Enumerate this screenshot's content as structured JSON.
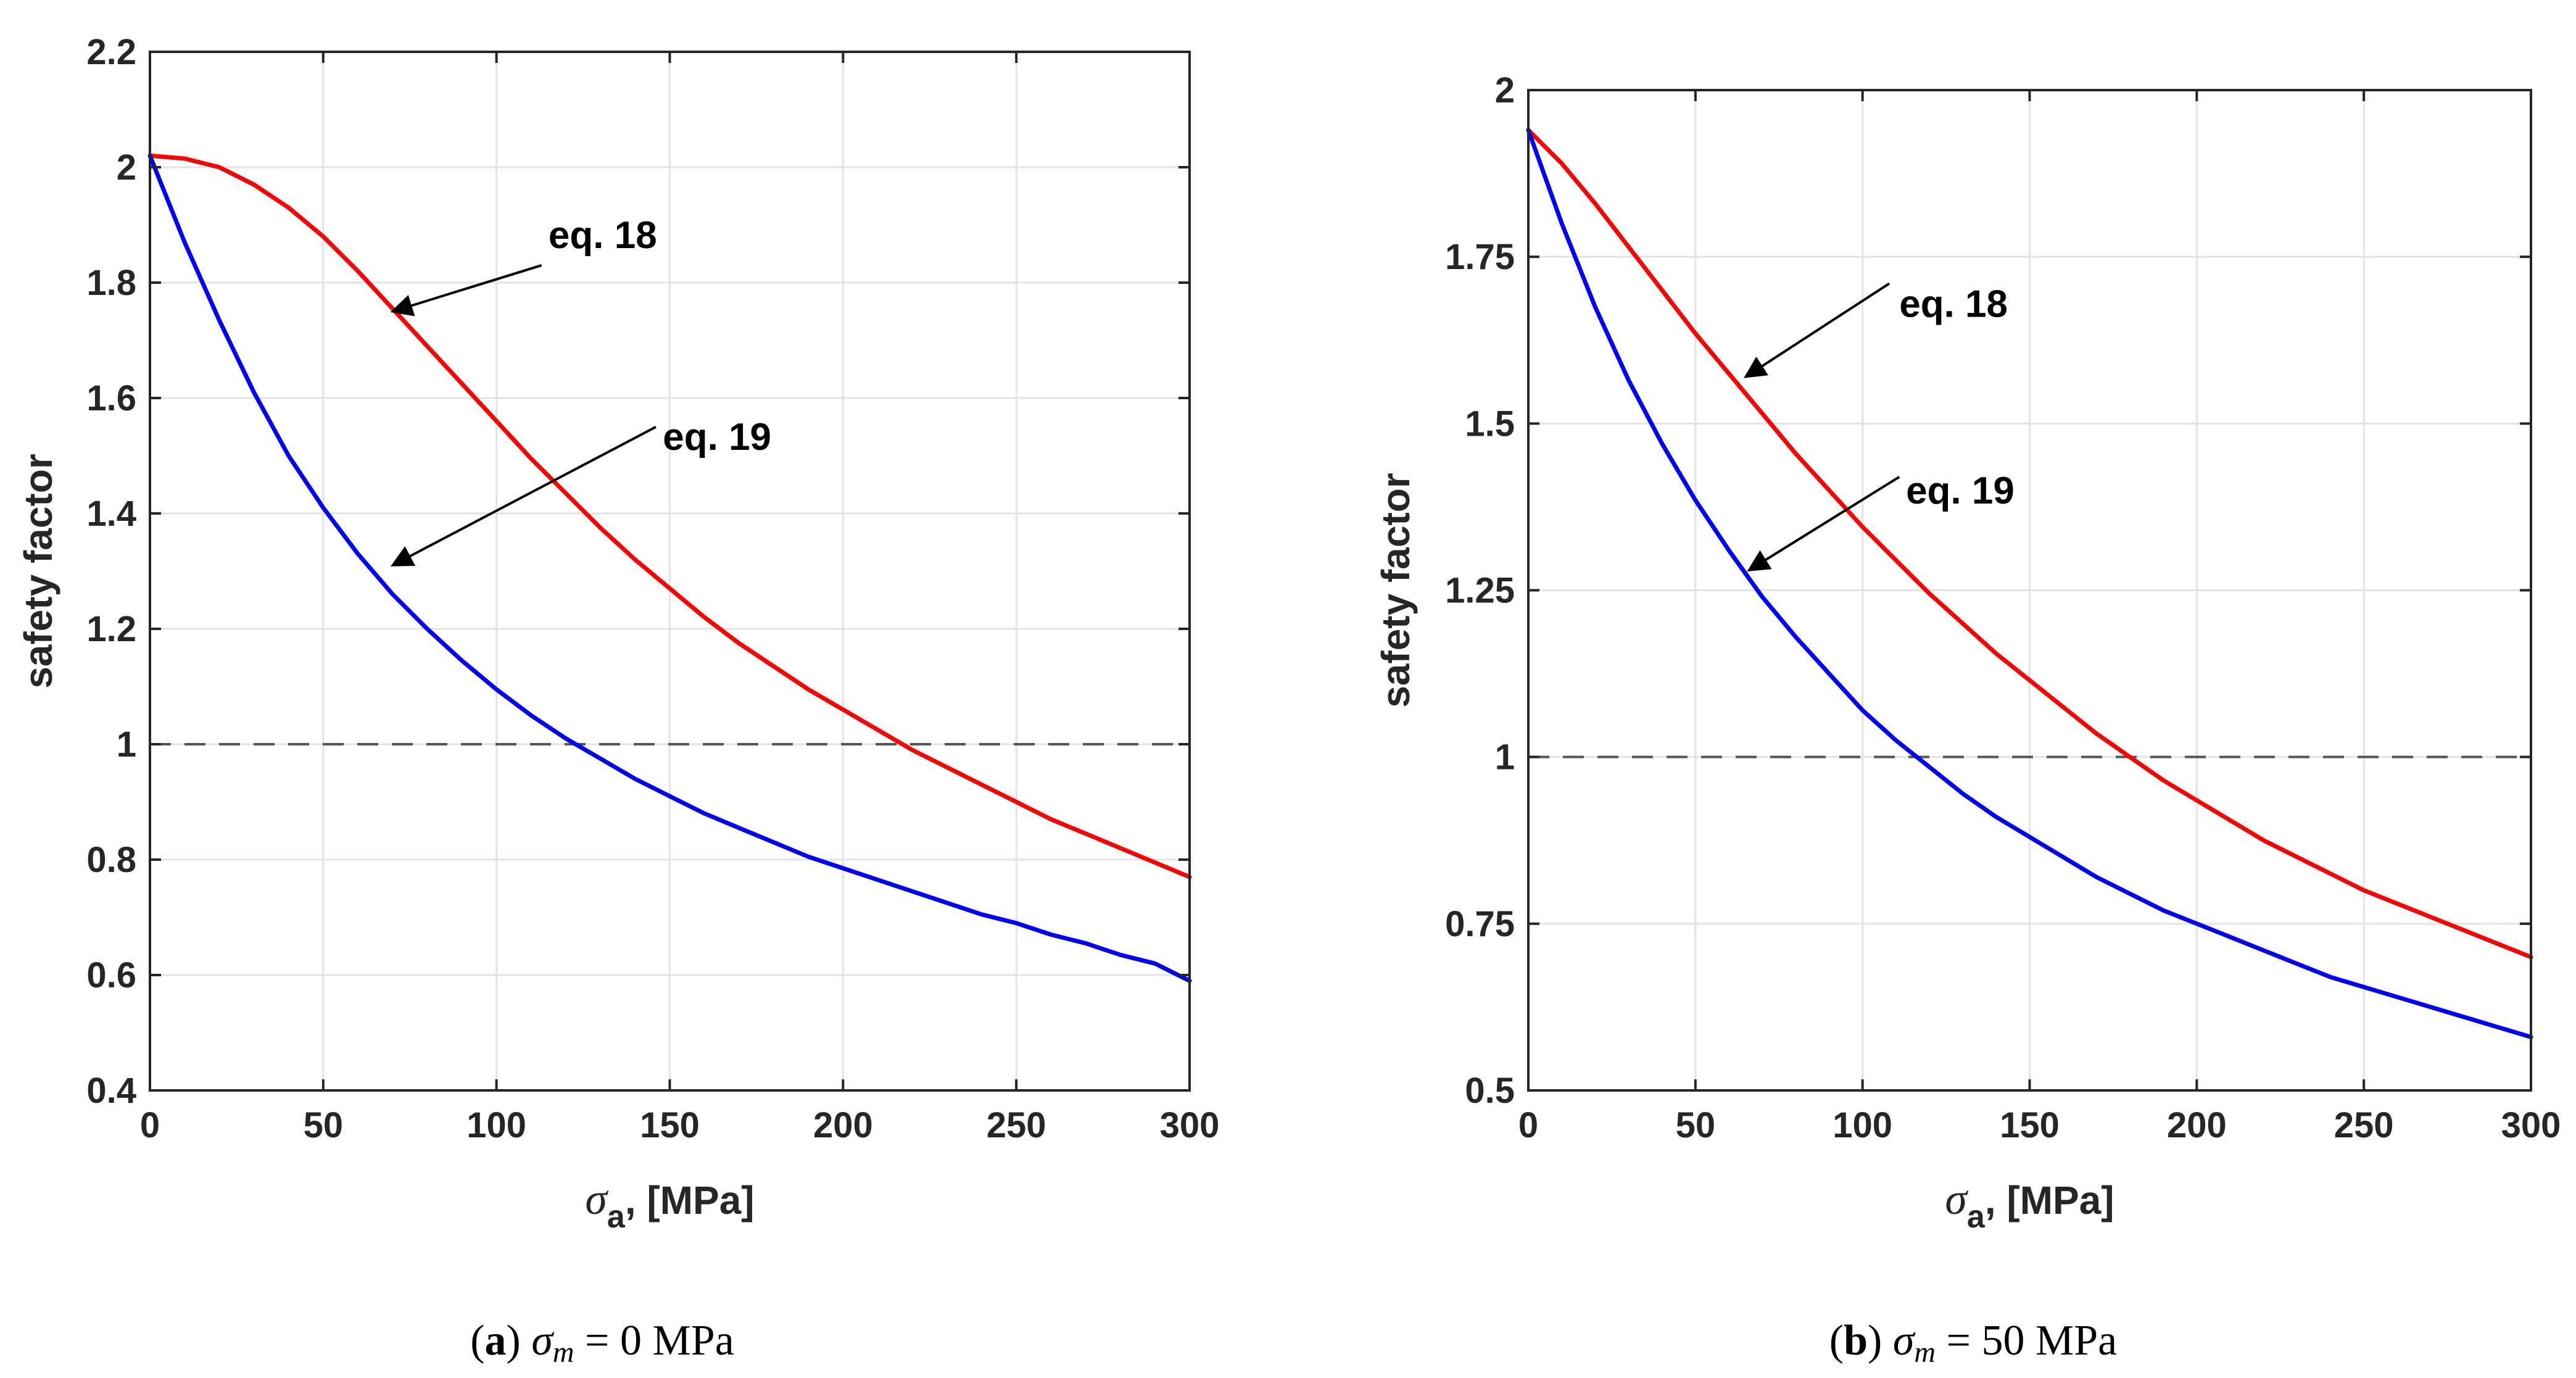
{
  "chart_data": [
    {
      "type": "line",
      "caption": {
        "letter": "a",
        "symbol": "σ",
        "subscript": "m",
        "rest": " = 0 MPa"
      },
      "xlabel": {
        "symbol": "σ",
        "subscript": "a",
        "rest": ", [MPa]"
      },
      "ylabel": "safety factor",
      "xlim": [
        0,
        300
      ],
      "ylim": [
        0.4,
        2.2
      ],
      "xticks": [
        0,
        50,
        100,
        150,
        200,
        250,
        300
      ],
      "xtick_labels": [
        "0",
        "50",
        "100",
        "150",
        "200",
        "250",
        "300"
      ],
      "yticks": [
        0.4,
        0.6,
        0.8,
        1.0,
        1.2,
        1.4,
        1.6,
        1.8,
        2.0,
        2.2
      ],
      "ytick_labels": [
        "0.4",
        "0.6",
        "0.8",
        "1",
        "1.2",
        "1.4",
        "1.6",
        "1.8",
        "2",
        "2.2"
      ],
      "grid": true,
      "reference_line": {
        "y": 1.0,
        "style": "dashed",
        "color": "#555555"
      },
      "series": [
        {
          "name": "eq. 18",
          "color": "#ff0000",
          "x": [
            0,
            10,
            20,
            30,
            40,
            50,
            60,
            70,
            80,
            90,
            100,
            110,
            120,
            130,
            140,
            150,
            160,
            170,
            180,
            190,
            200,
            210,
            220,
            230,
            240,
            250,
            260,
            270,
            280,
            290,
            300
          ],
          "y": [
            2.02,
            2.015,
            2.0,
            1.97,
            1.93,
            1.88,
            1.82,
            1.755,
            1.69,
            1.625,
            1.56,
            1.495,
            1.435,
            1.375,
            1.32,
            1.27,
            1.22,
            1.175,
            1.135,
            1.095,
            1.06,
            1.025,
            0.99,
            0.96,
            0.93,
            0.9,
            0.87,
            0.845,
            0.82,
            0.795,
            0.77
          ]
        },
        {
          "name": "eq. 19",
          "color": "#0000ff",
          "x": [
            0,
            10,
            20,
            30,
            40,
            50,
            60,
            70,
            80,
            90,
            100,
            110,
            120,
            130,
            140,
            150,
            160,
            170,
            180,
            190,
            200,
            210,
            220,
            230,
            240,
            250,
            260,
            270,
            280,
            290,
            300
          ],
          "y": [
            2.02,
            1.87,
            1.735,
            1.61,
            1.5,
            1.41,
            1.33,
            1.26,
            1.2,
            1.145,
            1.095,
            1.05,
            1.01,
            0.975,
            0.94,
            0.91,
            0.88,
            0.855,
            0.83,
            0.805,
            0.785,
            0.765,
            0.745,
            0.725,
            0.705,
            0.69,
            0.67,
            0.655,
            0.635,
            0.62,
            0.59
          ]
        }
      ],
      "annotations": [
        {
          "text": "eq. 18",
          "text_at": [
            115,
            1.86
          ],
          "arrow_from": [
            113,
            1.83
          ],
          "arrow_to": [
            70,
            1.75
          ]
        },
        {
          "text": "eq. 19",
          "text_at": [
            148,
            1.51
          ],
          "arrow_from": [
            146,
            1.55
          ],
          "arrow_to": [
            70,
            1.31
          ]
        }
      ]
    },
    {
      "type": "line",
      "caption": {
        "letter": "b",
        "symbol": "σ",
        "subscript": "m",
        "rest": " = 50 MPa"
      },
      "xlabel": {
        "symbol": "σ",
        "subscript": "a",
        "rest": ", [MPa]"
      },
      "ylabel": "safety factor",
      "xlim": [
        0,
        300
      ],
      "ylim": [
        0.5,
        2.0
      ],
      "xticks": [
        0,
        50,
        100,
        150,
        200,
        250,
        300
      ],
      "xtick_labels": [
        "0",
        "50",
        "100",
        "150",
        "200",
        "250",
        "300"
      ],
      "yticks": [
        0.5,
        0.75,
        1.0,
        1.25,
        1.5,
        1.75,
        2.0
      ],
      "ytick_labels": [
        "0.5",
        "0.75",
        "1",
        "1.25",
        "1.5",
        "1.75",
        "2"
      ],
      "grid": true,
      "reference_line": {
        "y": 1.0,
        "style": "dashed",
        "color": "#555555"
      },
      "series": [
        {
          "name": "eq. 18",
          "color": "#ff0000",
          "x": [
            0,
            10,
            20,
            30,
            40,
            50,
            60,
            70,
            80,
            90,
            100,
            110,
            120,
            130,
            140,
            150,
            160,
            170,
            180,
            190,
            200,
            210,
            220,
            230,
            240,
            250,
            260,
            270,
            280,
            290,
            300
          ],
          "y": [
            1.94,
            1.89,
            1.83,
            1.765,
            1.7,
            1.635,
            1.575,
            1.515,
            1.455,
            1.4,
            1.345,
            1.295,
            1.245,
            1.2,
            1.155,
            1.115,
            1.075,
            1.035,
            1.0,
            0.965,
            0.935,
            0.905,
            0.875,
            0.85,
            0.825,
            0.8,
            0.78,
            0.76,
            0.74,
            0.72,
            0.7
          ]
        },
        {
          "name": "eq. 19",
          "color": "#0000ff",
          "x": [
            0,
            10,
            20,
            30,
            40,
            50,
            60,
            70,
            80,
            90,
            100,
            110,
            120,
            130,
            140,
            150,
            160,
            170,
            180,
            190,
            200,
            210,
            220,
            230,
            240,
            250,
            260,
            270,
            280,
            290,
            300
          ],
          "y": [
            1.94,
            1.8,
            1.675,
            1.565,
            1.47,
            1.385,
            1.31,
            1.24,
            1.18,
            1.125,
            1.07,
            1.025,
            0.985,
            0.945,
            0.91,
            0.88,
            0.85,
            0.82,
            0.795,
            0.77,
            0.75,
            0.73,
            0.71,
            0.69,
            0.67,
            0.655,
            0.64,
            0.625,
            0.61,
            0.595,
            0.58
          ]
        }
      ],
      "annotations": [
        {
          "text": "eq. 18",
          "text_at": [
            111,
            1.66
          ],
          "arrow_from": [
            108,
            1.71
          ],
          "arrow_to": [
            65,
            1.57
          ]
        },
        {
          "text": "eq. 19",
          "text_at": [
            113,
            1.38
          ],
          "arrow_from": [
            111,
            1.42
          ],
          "arrow_to": [
            66,
            1.28
          ]
        }
      ]
    }
  ]
}
